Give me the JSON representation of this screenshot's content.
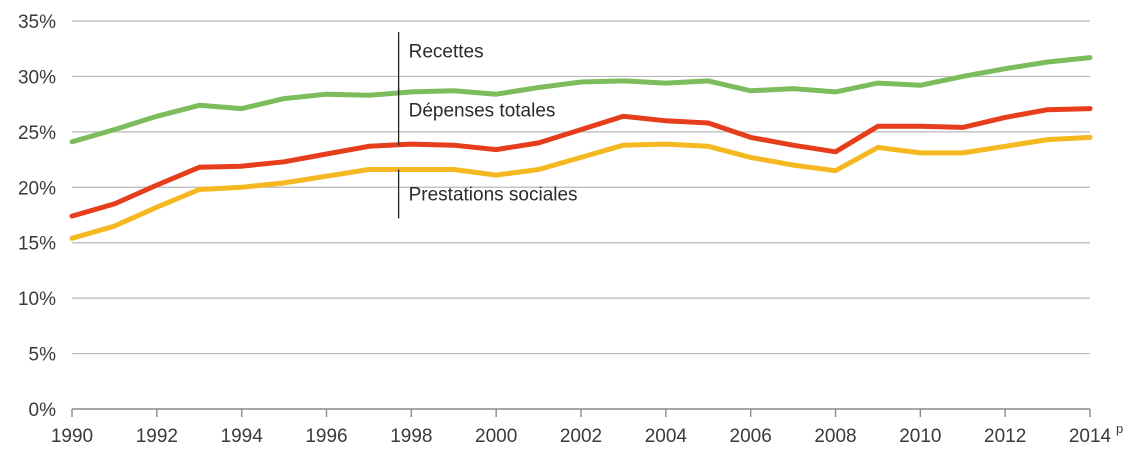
{
  "chart_data": {
    "type": "line",
    "x": [
      1990,
      1991,
      1992,
      1993,
      1994,
      1995,
      1996,
      1997,
      1998,
      1999,
      2000,
      2001,
      2002,
      2003,
      2004,
      2005,
      2006,
      2007,
      2008,
      2009,
      2010,
      2011,
      2012,
      2013,
      2014
    ],
    "x_tick_labels": [
      "1990",
      "1992",
      "1994",
      "1996",
      "1998",
      "2000",
      "2002",
      "2004",
      "2006",
      "2008",
      "2010",
      "2012",
      "2014"
    ],
    "last_tick_superscript": "p",
    "y_tick_labels": [
      "0%",
      "5%",
      "10%",
      "15%",
      "20%",
      "25%",
      "30%",
      "35%"
    ],
    "ylim": [
      0,
      35
    ],
    "xlim": [
      1990,
      2014
    ],
    "grid": true,
    "series": [
      {
        "name": "Recettes",
        "color": "#7cbc5c",
        "values": [
          24.1,
          25.2,
          26.4,
          27.4,
          27.1,
          28.0,
          28.4,
          28.3,
          28.6,
          28.7,
          28.4,
          29.0,
          29.5,
          29.6,
          29.4,
          29.6,
          28.7,
          28.9,
          28.6,
          29.4,
          29.2,
          30.0,
          30.7,
          31.3,
          31.7
        ]
      },
      {
        "name": "Dépenses totales",
        "color": "#e63e1c",
        "values": [
          17.4,
          18.5,
          20.2,
          21.8,
          21.9,
          22.3,
          23.0,
          23.7,
          23.9,
          23.8,
          23.4,
          24.0,
          25.2,
          26.4,
          26.0,
          25.8,
          24.5,
          23.8,
          23.2,
          25.5,
          25.5,
          25.4,
          26.3,
          27.0,
          27.1
        ]
      },
      {
        "name": "Prestations sociales",
        "color": "#f5b820",
        "values": [
          15.4,
          16.5,
          18.2,
          19.8,
          20.0,
          20.4,
          21.0,
          21.6,
          21.6,
          21.6,
          21.1,
          21.6,
          22.7,
          23.8,
          23.9,
          23.7,
          22.7,
          22.0,
          21.5,
          23.6,
          23.1,
          23.1,
          23.7,
          24.3,
          24.5
        ]
      }
    ],
    "annotations": [
      {
        "text": "Recettes",
        "series": 0
      },
      {
        "text": "Dépenses totales",
        "series": 1
      },
      {
        "text": "Prestations sociales",
        "series": 2
      }
    ]
  }
}
